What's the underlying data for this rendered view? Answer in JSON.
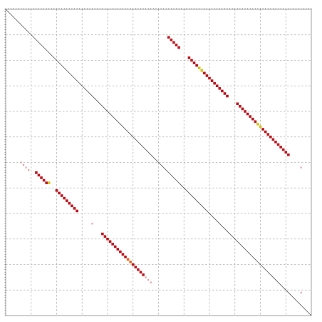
{
  "chart_data": {
    "type": "heatmap",
    "title": "",
    "xlabel": "",
    "ylabel": "",
    "xlim": [
      0,
      120
    ],
    "ylim": [
      0,
      120
    ],
    "grid": true,
    "diagonal_line": true,
    "legend": "none",
    "colors": {
      "high": "#c0141c",
      "medium": "#e86a2a",
      "low": "#d4c21e",
      "faint": "#e8a0a0",
      "grid": "#b4b4b4",
      "diagonal": "#555555"
    },
    "series": [
      {
        "name": "",
        "start": [
          6,
          60
        ],
        "step": [
          1,
          1
        ],
        "count": 4,
        "level": "faint"
      },
      {
        "name": "",
        "start": [
          12,
          64
        ],
        "step": [
          1,
          1
        ],
        "count": 5,
        "level": "high"
      },
      {
        "name": "",
        "start": [
          17,
          68
        ],
        "step": [
          1,
          1
        ],
        "count": 1,
        "level": "low"
      },
      {
        "name": "",
        "start": [
          20,
          71
        ],
        "step": [
          1,
          1
        ],
        "count": 9,
        "level": "high"
      },
      {
        "name": "",
        "start": [
          34,
          84
        ],
        "step": [
          1,
          1
        ],
        "count": 1,
        "level": "faint"
      },
      {
        "name": "",
        "start": [
          38,
          88
        ],
        "step": [
          1,
          1
        ],
        "count": 10,
        "level": "high"
      },
      {
        "name": "",
        "start": [
          48,
          98
        ],
        "step": [
          1,
          1
        ],
        "count": 2,
        "level": "medium"
      },
      {
        "name": "",
        "start": [
          50,
          100
        ],
        "step": [
          1,
          1
        ],
        "count": 5,
        "level": "high"
      },
      {
        "name": "",
        "start": [
          55,
          105
        ],
        "step": [
          1,
          1
        ],
        "count": 3,
        "level": "faint"
      },
      {
        "name": "",
        "start": [
          64,
          11
        ],
        "step": [
          1,
          1
        ],
        "count": 5,
        "level": "high"
      },
      {
        "name": "",
        "start": [
          72,
          19
        ],
        "step": [
          1,
          1
        ],
        "count": 4,
        "level": "high"
      },
      {
        "name": "",
        "start": [
          76,
          23
        ],
        "step": [
          1,
          1
        ],
        "count": 2,
        "level": "low"
      },
      {
        "name": "",
        "start": [
          78,
          25
        ],
        "step": [
          1,
          1
        ],
        "count": 10,
        "level": "high"
      },
      {
        "name": "",
        "start": [
          91,
          37
        ],
        "step": [
          1,
          1
        ],
        "count": 8,
        "level": "high"
      },
      {
        "name": "",
        "start": [
          99,
          45
        ],
        "step": [
          1,
          1
        ],
        "count": 2,
        "level": "low"
      },
      {
        "name": "",
        "start": [
          101,
          47
        ],
        "step": [
          1,
          1
        ],
        "count": 6,
        "level": "high"
      },
      {
        "name": "",
        "start": [
          107,
          53
        ],
        "step": [
          1,
          1
        ],
        "count": 5,
        "level": "high"
      },
      {
        "name": "",
        "start": [
          116,
          111
        ],
        "step": [
          1,
          1
        ],
        "count": 1,
        "level": "faint"
      },
      {
        "name": "",
        "start": [
          116,
          62
        ],
        "step": [
          1,
          1
        ],
        "count": 1,
        "level": "faint"
      }
    ]
  }
}
